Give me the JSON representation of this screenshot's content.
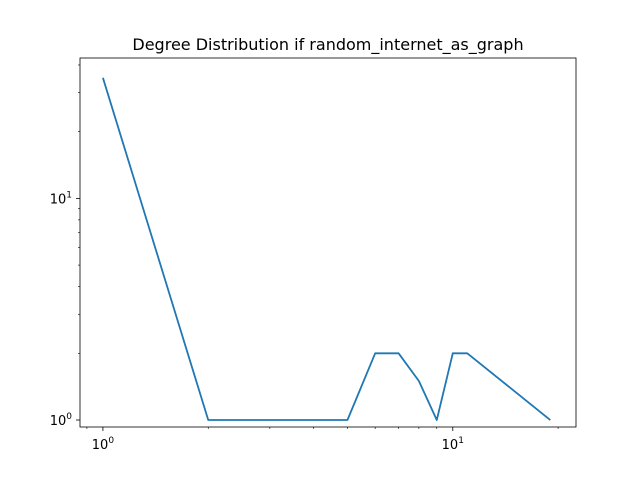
{
  "chart_data": {
    "type": "line",
    "title": "Degree Distribution if random_internet_as_graph",
    "xlabel": "",
    "ylabel": "",
    "xscale": "log",
    "yscale": "log",
    "xlim": [
      0.86,
      22.5
    ],
    "ylim": [
      0.93,
      43
    ],
    "grid": false,
    "legend": "none",
    "line_color": "#1f77b4",
    "x_major_ticks": [
      {
        "value": 1,
        "base": "10",
        "exp": "0"
      },
      {
        "value": 10,
        "base": "10",
        "exp": "1"
      }
    ],
    "y_major_ticks": [
      {
        "value": 1,
        "base": "10",
        "exp": "0"
      },
      {
        "value": 10,
        "base": "10",
        "exp": "1"
      }
    ],
    "series": [
      {
        "x": [
          1,
          2,
          3,
          4,
          5,
          6,
          7,
          8,
          9,
          10,
          11,
          19
        ],
        "y": [
          35,
          1,
          1,
          1,
          1,
          2,
          2,
          1.5,
          1,
          2,
          2,
          1
        ]
      }
    ]
  }
}
